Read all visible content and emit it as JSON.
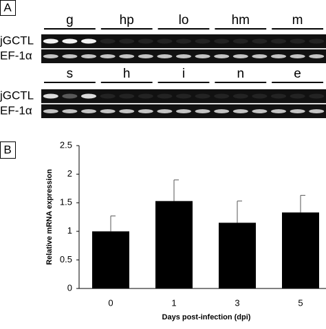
{
  "panel_labels": [
    "A",
    "B"
  ],
  "gel": [
    {
      "tissues": [
        "g",
        "hp",
        "lo",
        "hm",
        "m"
      ],
      "genes": [
        "jGCTL",
        "EF-1α"
      ]
    },
    {
      "tissues": [
        "s",
        "h",
        "i",
        "n",
        "e"
      ],
      "genes": [
        "jGCTL",
        "EF-1α"
      ]
    }
  ],
  "chart_data": {
    "type": "bar",
    "categories": [
      "0",
      "1",
      "3",
      "5"
    ],
    "values": [
      1.0,
      1.53,
      1.15,
      1.33
    ],
    "errors": [
      0.27,
      0.37,
      0.38,
      0.3
    ],
    "color": "#000000",
    "ylim": [
      0,
      2.5
    ],
    "yticks": [
      0,
      0.5,
      1,
      1.5,
      2,
      2.5
    ],
    "y_label": "Relative mRNA expression",
    "x_label": "Days post-infection (dpi)"
  }
}
